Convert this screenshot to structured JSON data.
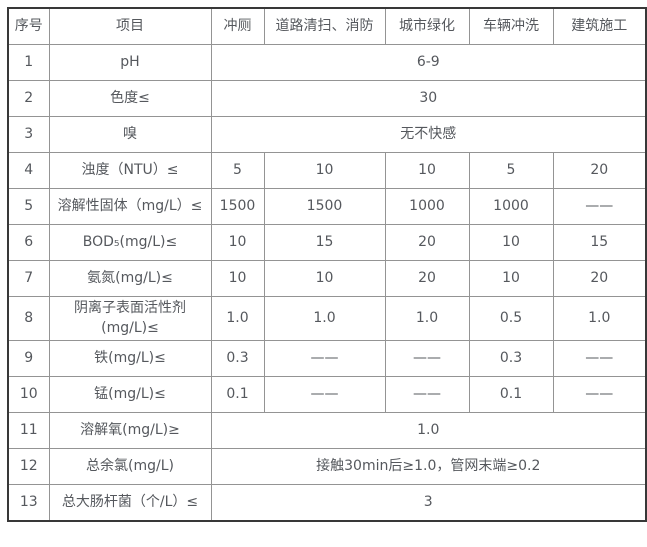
{
  "table": {
    "headers": [
      "序号",
      "项目",
      "冲厕",
      "道路清扫、消防",
      "城市绿化",
      "车辆冲洗",
      "建筑施工"
    ],
    "rows": [
      {
        "no": "1",
        "item": "pH",
        "span": "6-9"
      },
      {
        "no": "2",
        "item": "色度≤",
        "span": "30"
      },
      {
        "no": "3",
        "item": "嗅",
        "span": "无不快感"
      },
      {
        "no": "4",
        "item": "浊度（NTU）≤",
        "values": [
          "5",
          "10",
          "10",
          "5",
          "20"
        ]
      },
      {
        "no": "5",
        "item": "溶解性固体（mg/L）≤",
        "values": [
          "1500",
          "1500",
          "1000",
          "1000",
          "——"
        ]
      },
      {
        "no": "6",
        "item": "BOD₅(mg/L)≤",
        "values": [
          "10",
          "15",
          "20",
          "10",
          "15"
        ]
      },
      {
        "no": "7",
        "item": "氨氮(mg/L)≤",
        "values": [
          "10",
          "10",
          "20",
          "10",
          "20"
        ]
      },
      {
        "no": "8",
        "item": "阴离子表面活性剂\n(mg/L)≤",
        "values": [
          "1.0",
          "1.0",
          "1.0",
          "0.5",
          "1.0"
        ]
      },
      {
        "no": "9",
        "item": "铁(mg/L)≤",
        "values": [
          "0.3",
          "——",
          "——",
          "0.3",
          "——"
        ]
      },
      {
        "no": "10",
        "item": "锰(mg/L)≤",
        "values": [
          "0.1",
          "——",
          "——",
          "0.1",
          "——"
        ]
      },
      {
        "no": "11",
        "item": "溶解氧(mg/L)≥",
        "span": "1.0"
      },
      {
        "no": "12",
        "item": "总余氯(mg/L)",
        "span": "接触30min后≥1.0，管网末端≥0.2"
      },
      {
        "no": "13",
        "item": "总大肠杆菌（个/L）≤",
        "span": "3"
      }
    ],
    "colors": {
      "outer_border": "#383838",
      "inner_border": "#949494",
      "text": "#55585d",
      "background": "#ffffff"
    }
  }
}
